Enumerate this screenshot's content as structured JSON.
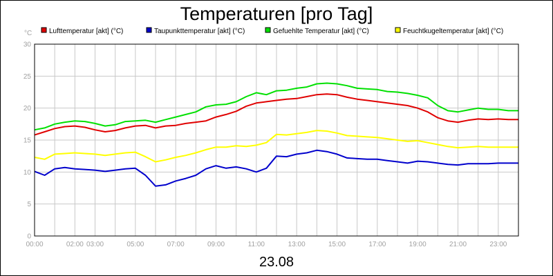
{
  "chart_data": {
    "type": "line",
    "title": "Temperaturen [pro Tag]",
    "ylabel": "°C",
    "xlabel": "23.08",
    "ylim": [
      0,
      30
    ],
    "yticks": [
      0,
      5,
      10,
      15,
      20,
      25,
      30
    ],
    "xlim_hours": [
      0,
      24
    ],
    "xticks": [
      {
        "hour": 0,
        "label": "00:00"
      },
      {
        "hour": 2,
        "label": "02:00"
      },
      {
        "hour": 3,
        "label": "03:00"
      },
      {
        "hour": 5,
        "label": "05:00"
      },
      {
        "hour": 7,
        "label": "07:00"
      },
      {
        "hour": 9,
        "label": "09:00"
      },
      {
        "hour": 11,
        "label": "11:00"
      },
      {
        "hour": 13,
        "label": "13:00"
      },
      {
        "hour": 15,
        "label": "15:00"
      },
      {
        "hour": 17,
        "label": "17:00"
      },
      {
        "hour": 19,
        "label": "19:00"
      },
      {
        "hour": 21,
        "label": "21:00"
      },
      {
        "hour": 23,
        "label": "23:00"
      }
    ],
    "grid": true,
    "series": [
      {
        "name": "Lufttemperatur [akt] (°C)",
        "color": "#e00000",
        "hours": [
          0,
          0.5,
          1,
          1.5,
          2,
          2.5,
          3,
          3.5,
          4,
          4.5,
          5,
          5.5,
          6,
          6.5,
          7,
          7.5,
          8,
          8.5,
          9,
          9.5,
          10,
          10.5,
          11,
          11.5,
          12,
          12.5,
          13,
          13.5,
          14,
          14.5,
          15,
          15.5,
          16,
          16.5,
          17,
          17.5,
          18,
          18.5,
          19,
          19.5,
          20,
          20.5,
          21,
          21.5,
          22,
          22.5,
          23,
          23.5,
          24
        ],
        "values": [
          15.8,
          16.3,
          16.8,
          17.1,
          17.2,
          17.0,
          16.6,
          16.3,
          16.5,
          16.9,
          17.2,
          17.3,
          16.9,
          17.2,
          17.3,
          17.6,
          17.8,
          18.0,
          18.6,
          19.0,
          19.5,
          20.3,
          20.8,
          21.0,
          21.2,
          21.4,
          21.5,
          21.8,
          22.1,
          22.2,
          22.1,
          21.7,
          21.4,
          21.2,
          21.0,
          20.8,
          20.6,
          20.4,
          20.0,
          19.4,
          18.5,
          18.0,
          17.8,
          18.1,
          18.3,
          18.2,
          18.3,
          18.2,
          18.2
        ]
      },
      {
        "name": "Taupunkttemperatur [akt] (°C)",
        "color": "#0000cc",
        "hours": [
          0,
          0.5,
          1,
          1.5,
          2,
          2.5,
          3,
          3.5,
          4,
          4.5,
          5,
          5.5,
          6,
          6.5,
          7,
          7.5,
          8,
          8.5,
          9,
          9.5,
          10,
          10.5,
          11,
          11.5,
          12,
          12.5,
          13,
          13.5,
          14,
          14.5,
          15,
          15.5,
          16,
          16.5,
          17,
          17.5,
          18,
          18.5,
          19,
          19.5,
          20,
          20.5,
          21,
          21.5,
          22,
          22.5,
          23,
          23.5,
          24
        ],
        "values": [
          10.1,
          9.5,
          10.5,
          10.7,
          10.5,
          10.4,
          10.3,
          10.1,
          10.3,
          10.5,
          10.6,
          9.5,
          7.8,
          8.0,
          8.6,
          9.0,
          9.5,
          10.5,
          11.0,
          10.6,
          10.8,
          10.5,
          10.0,
          10.6,
          12.5,
          12.4,
          12.8,
          13.0,
          13.4,
          13.2,
          12.8,
          12.2,
          12.1,
          12.0,
          12.0,
          11.8,
          11.6,
          11.4,
          11.7,
          11.6,
          11.4,
          11.2,
          11.1,
          11.3,
          11.3,
          11.3,
          11.4,
          11.4,
          11.4
        ]
      },
      {
        "name": "Gefuehlte Temperatur [akt] (°C)",
        "color": "#00e000",
        "hours": [
          0,
          0.5,
          1,
          1.5,
          2,
          2.5,
          3,
          3.5,
          4,
          4.5,
          5,
          5.5,
          6,
          6.5,
          7,
          7.5,
          8,
          8.5,
          9,
          9.5,
          10,
          10.5,
          11,
          11.5,
          12,
          12.5,
          13,
          13.5,
          14,
          14.5,
          15,
          15.5,
          16,
          16.5,
          17,
          17.5,
          18,
          18.5,
          19,
          19.5,
          20,
          20.5,
          21,
          21.5,
          22,
          22.5,
          23,
          23.5,
          24
        ],
        "values": [
          16.6,
          16.9,
          17.5,
          17.8,
          18.0,
          17.9,
          17.6,
          17.2,
          17.4,
          17.9,
          18.0,
          18.1,
          17.8,
          18.2,
          18.6,
          19.0,
          19.4,
          20.2,
          20.5,
          20.6,
          21.0,
          21.8,
          22.4,
          22.1,
          22.7,
          22.8,
          23.1,
          23.3,
          23.8,
          23.9,
          23.8,
          23.5,
          23.1,
          23.0,
          22.9,
          22.6,
          22.5,
          22.3,
          22.0,
          21.6,
          20.4,
          19.6,
          19.4,
          19.7,
          20.0,
          19.8,
          19.8,
          19.6,
          19.6
        ]
      },
      {
        "name": "Feuchtkugeltemperatur [akt] (°C)",
        "color": "#ffff00",
        "hours": [
          0,
          0.5,
          1,
          1.5,
          2,
          2.5,
          3,
          3.5,
          4,
          4.5,
          5,
          5.5,
          6,
          6.5,
          7,
          7.5,
          8,
          8.5,
          9,
          9.5,
          10,
          10.5,
          11,
          11.5,
          12,
          12.5,
          13,
          13.5,
          14,
          14.5,
          15,
          15.5,
          16,
          16.5,
          17,
          17.5,
          18,
          18.5,
          19,
          19.5,
          20,
          20.5,
          21,
          21.5,
          22,
          22.5,
          23,
          23.5,
          24
        ],
        "values": [
          12.3,
          12.0,
          12.8,
          12.9,
          13.0,
          12.9,
          12.8,
          12.6,
          12.8,
          13.0,
          13.1,
          12.4,
          11.6,
          11.9,
          12.3,
          12.6,
          13.0,
          13.5,
          13.9,
          13.9,
          14.1,
          14.0,
          14.2,
          14.6,
          15.9,
          15.8,
          16.0,
          16.2,
          16.5,
          16.4,
          16.1,
          15.7,
          15.6,
          15.5,
          15.4,
          15.2,
          15.0,
          14.8,
          14.9,
          14.6,
          14.3,
          14.0,
          13.8,
          13.9,
          14.0,
          13.9,
          13.9,
          13.9,
          13.9
        ]
      }
    ]
  }
}
